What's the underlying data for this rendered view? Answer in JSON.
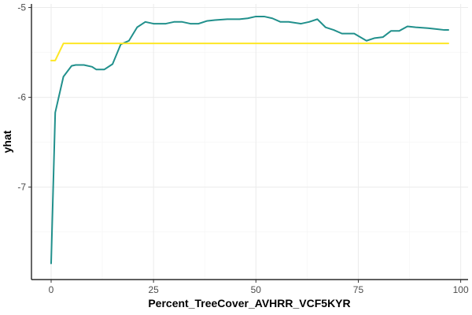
{
  "chart_data": {
    "type": "line",
    "title": "",
    "xlabel": "Percent_TreeCover_AVHRR_VCF5KYR",
    "ylabel": "yhat",
    "xlim": [
      -4.8,
      101.8
    ],
    "ylim": [
      -8.03,
      -4.96
    ],
    "x_ticks": [
      0,
      25,
      50,
      75,
      100
    ],
    "y_ticks": [
      -7,
      -6,
      -5
    ],
    "x_tick_labels": [
      "0",
      "25",
      "50",
      "75",
      "100"
    ],
    "y_tick_labels": [
      "-7",
      "-6",
      "-5"
    ],
    "grid": true,
    "legend": "none",
    "series": [
      {
        "color": "#21908C",
        "points": [
          [
            0,
            -7.85
          ],
          [
            1,
            -6.17
          ],
          [
            2,
            -5.97
          ],
          [
            3,
            -5.77
          ],
          [
            5,
            -5.65
          ],
          [
            6,
            -5.64
          ],
          [
            8,
            -5.64
          ],
          [
            10,
            -5.66
          ],
          [
            11,
            -5.69
          ],
          [
            13,
            -5.69
          ],
          [
            15,
            -5.63
          ],
          [
            17,
            -5.41
          ],
          [
            19,
            -5.37
          ],
          [
            21,
            -5.22
          ],
          [
            23,
            -5.16
          ],
          [
            25,
            -5.18
          ],
          [
            28,
            -5.18
          ],
          [
            30,
            -5.16
          ],
          [
            32,
            -5.16
          ],
          [
            34,
            -5.18
          ],
          [
            36,
            -5.18
          ],
          [
            38,
            -5.15
          ],
          [
            40,
            -5.14
          ],
          [
            43,
            -5.13
          ],
          [
            46,
            -5.13
          ],
          [
            48,
            -5.12
          ],
          [
            50,
            -5.1
          ],
          [
            52,
            -5.1
          ],
          [
            54,
            -5.12
          ],
          [
            56,
            -5.16
          ],
          [
            58,
            -5.16
          ],
          [
            61,
            -5.18
          ],
          [
            63,
            -5.16
          ],
          [
            65,
            -5.13
          ],
          [
            67,
            -5.22
          ],
          [
            69,
            -5.25
          ],
          [
            71,
            -5.29
          ],
          [
            74,
            -5.29
          ],
          [
            77,
            -5.37
          ],
          [
            79,
            -5.34
          ],
          [
            81,
            -5.33
          ],
          [
            83,
            -5.26
          ],
          [
            85,
            -5.26
          ],
          [
            87,
            -5.21
          ],
          [
            89,
            -5.22
          ],
          [
            92,
            -5.23
          ],
          [
            94,
            -5.24
          ],
          [
            96,
            -5.25
          ],
          [
            97,
            -5.25
          ]
        ]
      },
      {
        "color": "#FDE725",
        "points": [
          [
            0,
            -5.59
          ],
          [
            1,
            -5.59
          ],
          [
            3,
            -5.4
          ],
          [
            10,
            -5.4
          ],
          [
            20,
            -5.4
          ],
          [
            40,
            -5.4
          ],
          [
            60,
            -5.4
          ],
          [
            80,
            -5.4
          ],
          [
            97,
            -5.4
          ]
        ]
      }
    ]
  }
}
